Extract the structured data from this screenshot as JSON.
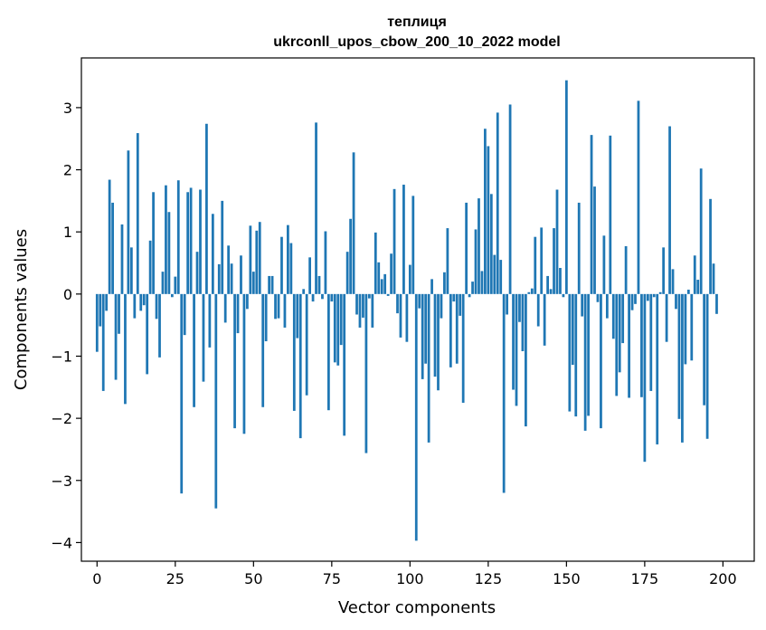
{
  "chart_data": {
    "type": "bar",
    "title": "теплиця",
    "subtitle": "ukrconll_upos_cbow_200_10_2022 model",
    "xlabel": "Vector components",
    "ylabel": "Components values",
    "xlim": [
      -5,
      210
    ],
    "ylim": [
      -4.3,
      3.8
    ],
    "xticks": [
      0,
      25,
      50,
      75,
      100,
      125,
      150,
      175,
      200
    ],
    "yticks": [
      -4,
      -3,
      -2,
      -1,
      0,
      1,
      2,
      3
    ],
    "bar_color": "#1f77b4",
    "grid": false,
    "values": [
      -0.93,
      -0.52,
      -1.56,
      -0.27,
      1.84,
      1.47,
      -1.38,
      -0.64,
      1.12,
      -1.77,
      2.31,
      0.75,
      -0.39,
      2.59,
      -0.27,
      -0.18,
      -1.29,
      0.86,
      1.64,
      -0.4,
      -1.02,
      0.36,
      1.75,
      1.32,
      -0.05,
      0.28,
      1.83,
      -3.21,
      -0.66,
      1.64,
      1.71,
      -1.82,
      0.68,
      1.68,
      -1.41,
      2.74,
      -0.86,
      1.29,
      -3.45,
      0.48,
      1.5,
      -0.46,
      0.78,
      0.49,
      -2.16,
      -0.63,
      0.62,
      -2.25,
      -0.24,
      1.1,
      0.36,
      1.02,
      1.16,
      -1.82,
      -0.76,
      0.29,
      0.29,
      -0.4,
      -0.39,
      0.92,
      -0.54,
      1.11,
      0.82,
      -1.88,
      -0.71,
      -2.32,
      0.08,
      -1.63,
      0.59,
      -0.12,
      2.76,
      0.29,
      -0.08,
      1.01,
      -1.87,
      -0.12,
      -1.1,
      -1.15,
      -0.82,
      -2.28,
      0.68,
      1.21,
      2.28,
      -0.33,
      -0.54,
      -0.38,
      -2.56,
      -0.07,
      -0.54,
      0.99,
      0.51,
      0.24,
      0.32,
      -0.03,
      0.65,
      1.69,
      -0.31,
      -0.7,
      1.76,
      -0.77,
      0.47,
      1.58,
      -3.97,
      -0.23,
      -1.37,
      -1.12,
      -2.39,
      0.24,
      -1.33,
      -1.55,
      -0.39,
      0.35,
      1.06,
      -1.18,
      -0.12,
      -1.12,
      -0.35,
      -1.75,
      1.47,
      -0.05,
      0.2,
      1.04,
      1.54,
      0.37,
      2.66,
      2.38,
      1.61,
      0.63,
      2.92,
      0.55,
      -3.2,
      -0.33,
      3.05,
      -1.54,
      -1.8,
      -0.45,
      -0.92,
      -2.13,
      0.03,
      0.09,
      0.92,
      -0.52,
      1.07,
      -0.83,
      0.29,
      0.08,
      1.06,
      1.68,
      0.42,
      -0.05,
      3.44,
      -1.89,
      -1.14,
      -1.97,
      1.47,
      -0.36,
      -2.2,
      -1.96,
      2.56,
      1.73,
      -0.13,
      -2.16,
      0.94,
      -0.39,
      2.55,
      -0.72,
      -1.64,
      -1.26,
      -0.79,
      0.77,
      -1.67,
      -0.26,
      -0.16,
      3.11,
      -1.66,
      -2.7,
      -0.11,
      -1.56,
      -0.05,
      -2.42,
      0.03,
      0.75,
      -0.77,
      2.7,
      0.4,
      -0.24,
      -2.01,
      -2.39,
      -1.13,
      0.07,
      -1.07,
      0.62,
      0.23,
      2.02,
      -1.79,
      -2.33,
      1.53,
      0.49,
      -0.32
    ]
  }
}
